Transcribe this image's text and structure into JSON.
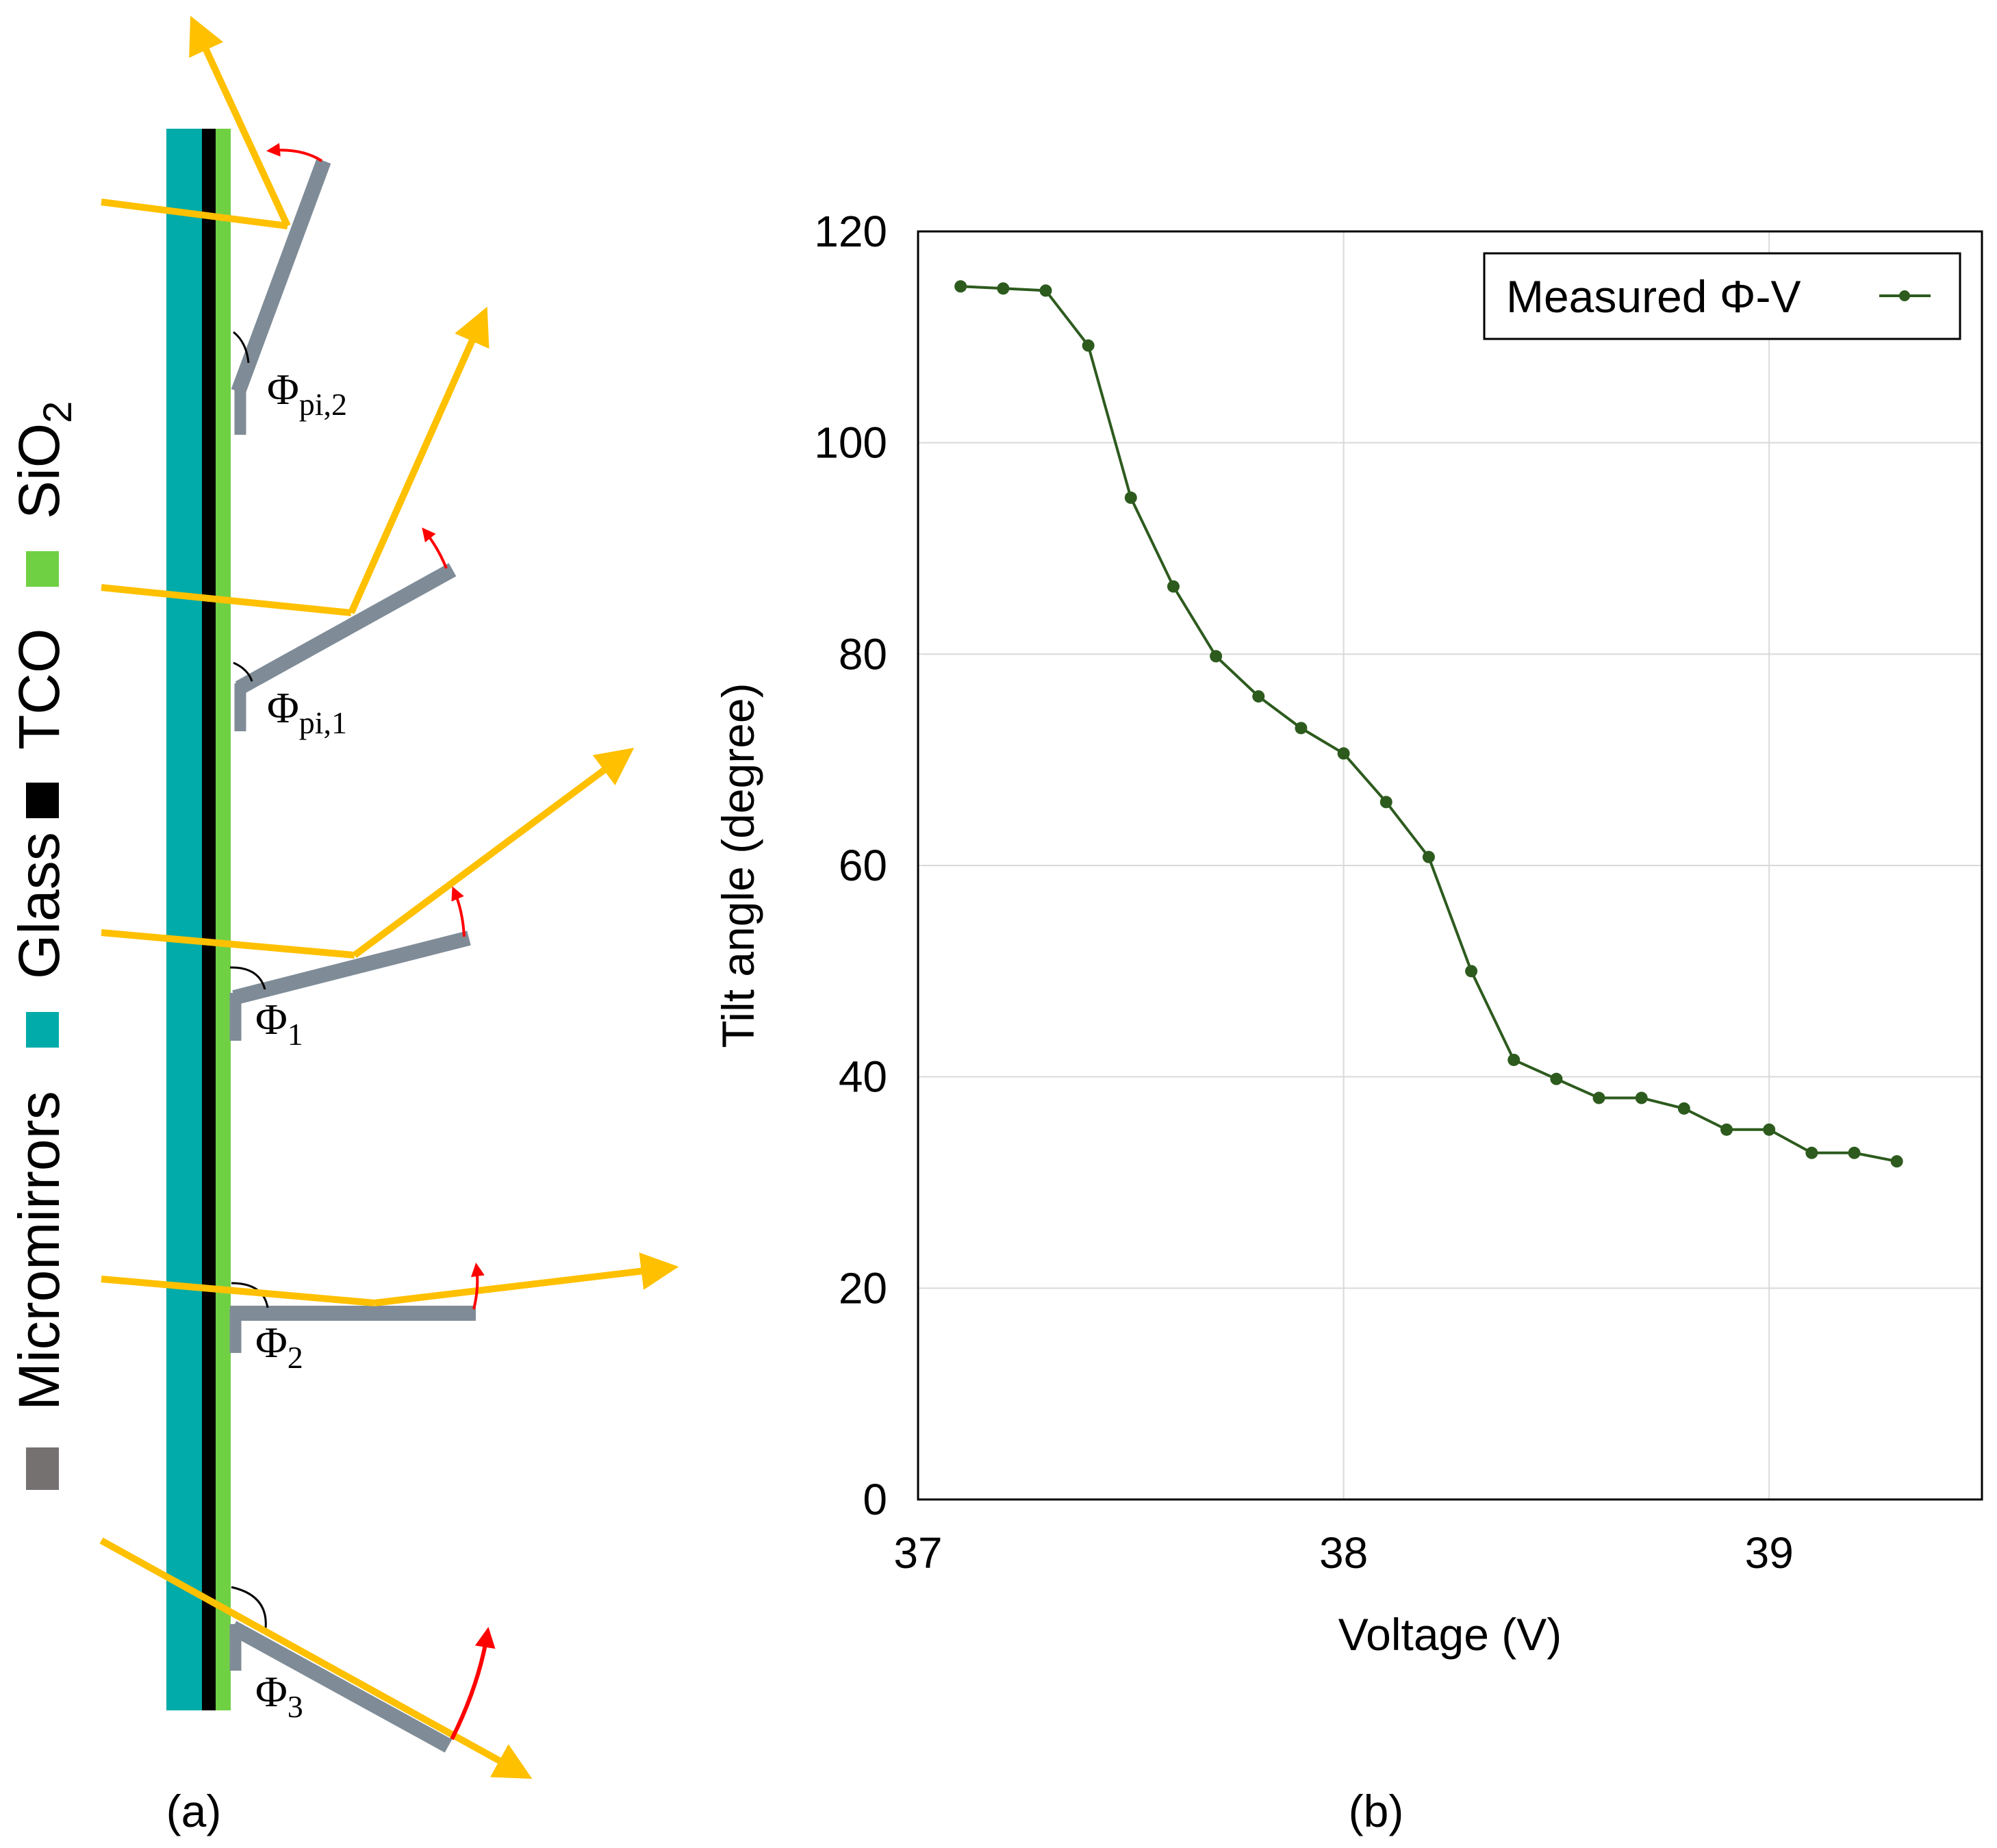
{
  "panel_a": {
    "caption": "(a)",
    "legend": [
      {
        "label": "Micromirrors",
        "color": "#767171"
      },
      {
        "label": "Glass",
        "color": "#00ABA9"
      },
      {
        "label": "TCO",
        "color": "#000000"
      },
      {
        "label": "SiO",
        "sub": "2",
        "color": "#70D044"
      }
    ],
    "angle_labels": [
      {
        "name": "phi-pi2",
        "base": "Φ",
        "sub": "pi,2"
      },
      {
        "name": "phi-pi1",
        "base": "Φ",
        "sub": "pi,1"
      },
      {
        "name": "phi-1",
        "base": "Φ",
        "sub": "1"
      },
      {
        "name": "phi-2",
        "base": "Φ",
        "sub": "2"
      },
      {
        "name": "phi-3",
        "base": "Φ",
        "sub": "3"
      }
    ],
    "colors": {
      "light_ray": "#FFC000",
      "tilt_arrow": "#FF0000",
      "mirror": "#7F8C97"
    }
  },
  "panel_b": {
    "caption": "(b)"
  },
  "chart_data": {
    "type": "line",
    "title": "",
    "xlabel": "Voltage (V)",
    "ylabel": "Tilt angle (degree)",
    "xlim": [
      37,
      39.5
    ],
    "ylim": [
      0,
      120
    ],
    "xticks": [
      37,
      38,
      39
    ],
    "yticks": [
      0,
      20,
      40,
      60,
      80,
      100,
      120
    ],
    "grid": true,
    "legend_position": "top-right",
    "series": [
      {
        "name": "Measured Φ-V",
        "color": "#2D5B1E",
        "marker": "circle",
        "x": [
          37.1,
          37.2,
          37.3,
          37.4,
          37.5,
          37.6,
          37.7,
          37.8,
          37.9,
          38.0,
          38.1,
          38.2,
          38.3,
          38.4,
          38.5,
          38.6,
          38.7,
          38.8,
          38.9,
          39.0,
          39.1,
          39.2,
          39.3
        ],
        "y": [
          114.8,
          114.6,
          114.4,
          109.2,
          94.8,
          86.4,
          79.8,
          76.0,
          73.0,
          70.6,
          66.0,
          60.8,
          50.0,
          41.6,
          39.8,
          38.0,
          38.0,
          37.0,
          35.0,
          35.0,
          32.8,
          32.8,
          32.0
        ]
      }
    ]
  }
}
